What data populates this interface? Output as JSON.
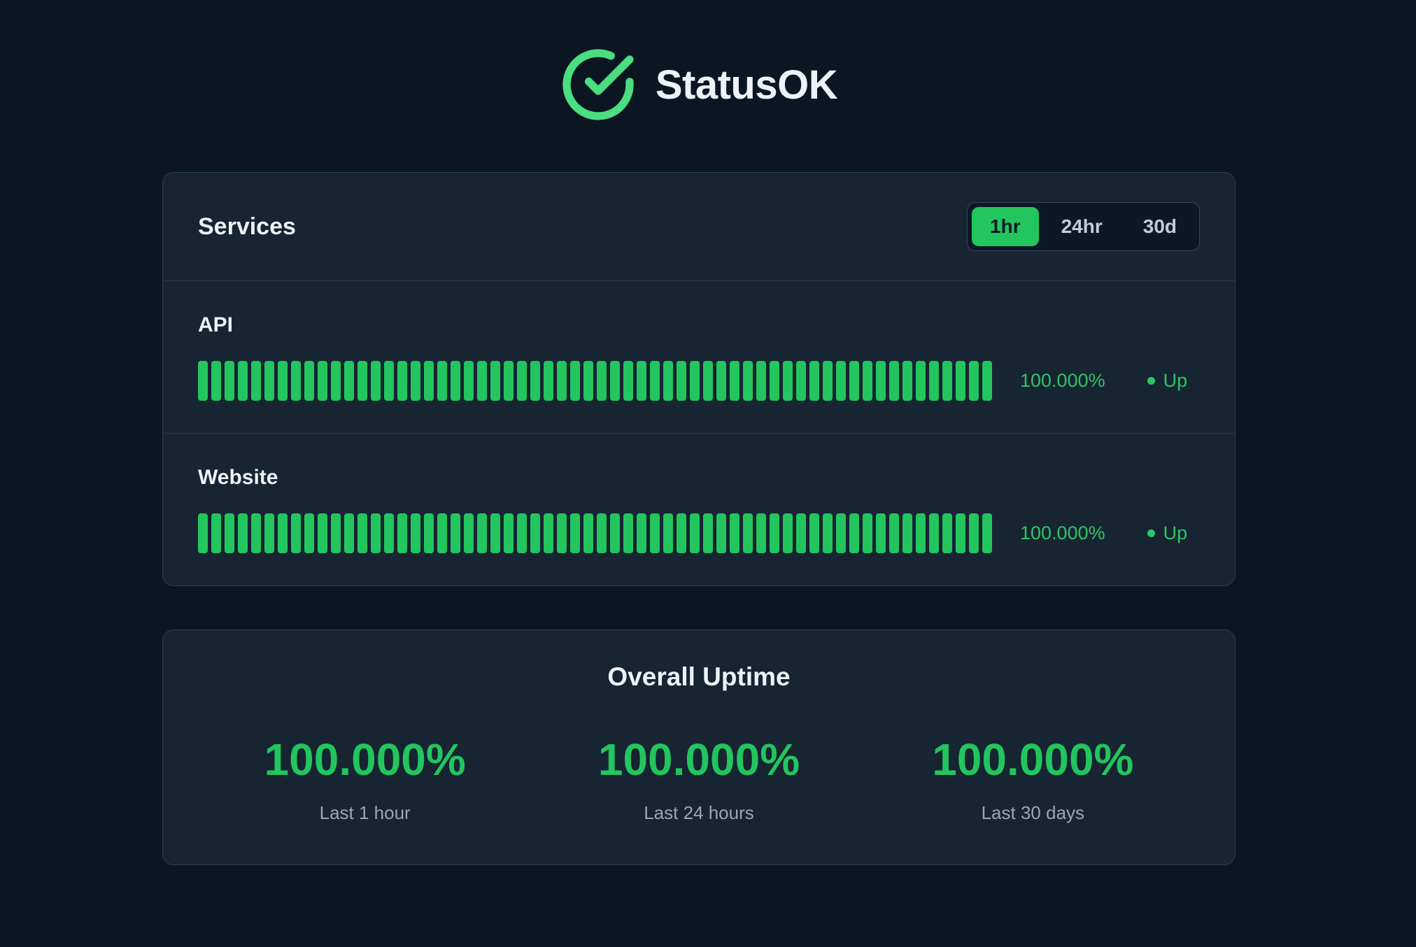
{
  "app": {
    "title": "StatusOK",
    "logo_icon": "check-circle-icon"
  },
  "colors": {
    "accent_green": "#22c55e",
    "logo_green": "#4ade80",
    "status_green": "#2dc666",
    "page_background": "#0b1622",
    "card_background": "#172432"
  },
  "services_panel": {
    "title": "Services",
    "time_ranges": [
      {
        "label": "1hr",
        "active": true
      },
      {
        "label": "24hr",
        "active": false
      },
      {
        "label": "30d",
        "active": false
      }
    ],
    "services": [
      {
        "name": "API",
        "uptime": "100.000%",
        "status": "Up",
        "tick_count": 60,
        "tick_state": "up"
      },
      {
        "name": "Website",
        "uptime": "100.000%",
        "status": "Up",
        "tick_count": 60,
        "tick_state": "up"
      }
    ]
  },
  "overall_uptime": {
    "title": "Overall Uptime",
    "stats": [
      {
        "value": "100.000%",
        "label": "Last 1 hour"
      },
      {
        "value": "100.000%",
        "label": "Last 24 hours"
      },
      {
        "value": "100.000%",
        "label": "Last 30 days"
      }
    ]
  }
}
